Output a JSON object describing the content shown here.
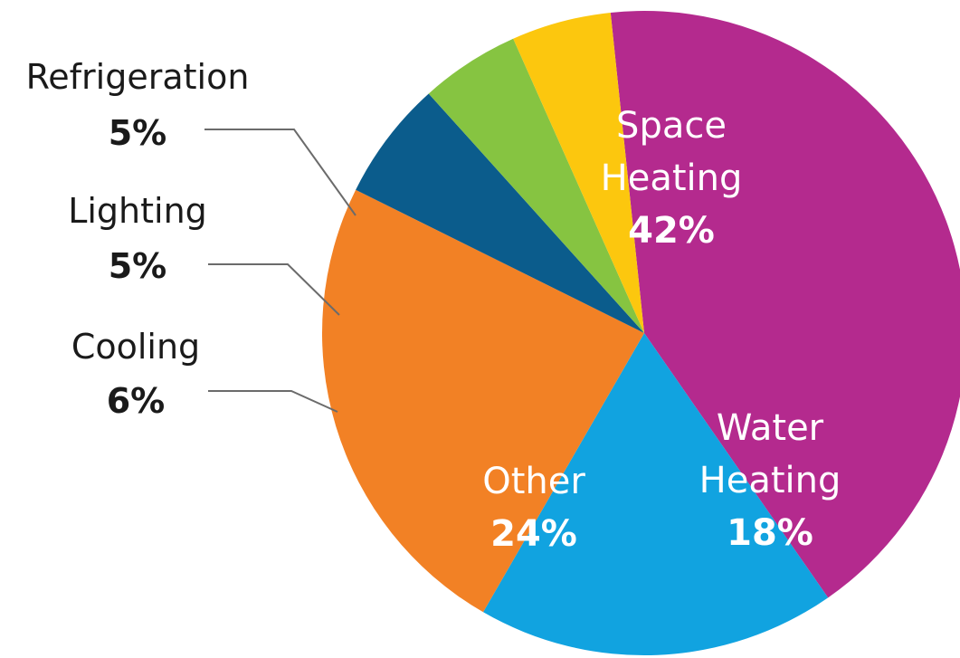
{
  "chart_data": {
    "type": "pie",
    "slices": [
      {
        "label": [
          "Space",
          "Heating"
        ],
        "value": 42,
        "value_label": "42%",
        "color": "#B42A8E",
        "label_placement": "inside"
      },
      {
        "label": [
          "Water",
          "Heating"
        ],
        "value": 18,
        "value_label": "18%",
        "color": "#11A3E0",
        "label_placement": "inside"
      },
      {
        "label": [
          "Other"
        ],
        "value": 24,
        "value_label": "24%",
        "color": "#F28125",
        "label_placement": "inside"
      },
      {
        "label": [
          "Cooling"
        ],
        "value": 6,
        "value_label": "6%",
        "color": "#0B5C8C",
        "label_placement": "outside-left"
      },
      {
        "label": [
          "Lighting"
        ],
        "value": 5,
        "value_label": "5%",
        "color": "#86C441",
        "label_placement": "outside-left"
      },
      {
        "label": [
          "Refrigeration"
        ],
        "value": 5,
        "value_label": "5%",
        "color": "#FCC70E",
        "label_placement": "outside-left"
      }
    ],
    "start_angle_deg": 354,
    "direction": "clockwise"
  }
}
